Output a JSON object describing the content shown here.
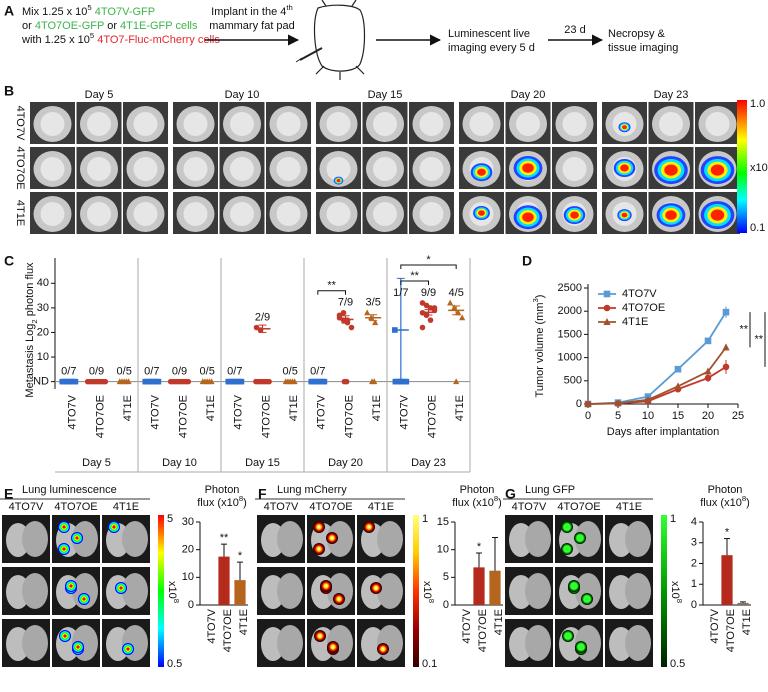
{
  "panel_labels": [
    "A",
    "B",
    "C",
    "D",
    "E",
    "F",
    "G"
  ],
  "workflow": {
    "mix": [
      [
        {
          "text": "Mix 1.25 x 10"
        },
        {
          "text": "5",
          "sup": true
        },
        {
          "text": " 4TO7V-GFP",
          "color": "#3cb44b"
        }
      ],
      [
        {
          "text": "or "
        },
        {
          "text": "4TO7OE-GFP",
          "color": "#3cb44b"
        },
        {
          "text": " or "
        },
        {
          "text": "4T1E-GFP cells",
          "color": "#3cb44b"
        }
      ],
      [
        {
          "text": "with 1.25 x 10"
        },
        {
          "text": "5",
          "sup": true
        },
        {
          "text": " 4TO7-Fluc-mCherry cells",
          "color": "#e6262d"
        }
      ]
    ],
    "implant": [
      [
        {
          "text": "Implant in the 4"
        },
        {
          "text": "th",
          "sup": true
        }
      ],
      [
        {
          "text": "mammary fat pad"
        }
      ]
    ],
    "imaging": [
      [
        {
          "text": "Luminescent live"
        }
      ],
      [
        {
          "text": "imaging every 5 d"
        }
      ]
    ],
    "interval": "23 d",
    "necropsy": [
      [
        {
          "text": "Necropsy &"
        }
      ],
      [
        {
          "text": "tissue imaging"
        }
      ]
    ]
  },
  "live_imaging": {
    "days": [
      "Day 5",
      "Day 10",
      "Day 15",
      "Day 20",
      "Day 23"
    ],
    "rows": [
      "4TO7V",
      "4TO7OE",
      "4T1E"
    ],
    "colorbar": {
      "max": "1.0",
      "min": "0.1",
      "unit": [
        {
          "text": "x10"
        },
        {
          "text": "7",
          "sup": true
        }
      ]
    }
  },
  "chart_data": [
    {
      "type": "dot-scatter",
      "ylabel": [
        {
          "text": "Metastasis Log"
        },
        {
          "text": "2",
          "sub": true
        },
        {
          "text": " photon flux"
        }
      ],
      "ylim": [
        -3,
        45
      ],
      "yticks": [
        {
          "value": 0,
          "label": "ND"
        },
        10,
        20,
        30,
        40
      ],
      "groups": [
        {
          "label": "Day 5",
          "series": [
            {
              "name": "4TO7V",
              "color": "#2e6fd0",
              "marker": "square",
              "fraction": "0/7",
              "values": [
                0,
                0,
                0,
                0,
                0,
                0,
                0
              ]
            },
            {
              "name": "4TO7OE",
              "color": "#c0392b",
              "marker": "circle",
              "fraction": "0/9",
              "values": [
                0,
                0,
                0,
                0,
                0,
                0,
                0,
                0,
                0
              ]
            },
            {
              "name": "4T1E",
              "color": "#b5651d",
              "marker": "triangle",
              "fraction": "0/5",
              "values": [
                0,
                0,
                0,
                0,
                0
              ]
            }
          ]
        },
        {
          "label": "Day 10",
          "series": [
            {
              "name": "4TO7V",
              "color": "#2e6fd0",
              "marker": "square",
              "fraction": "0/7",
              "values": [
                0,
                0,
                0,
                0,
                0,
                0,
                0
              ]
            },
            {
              "name": "4TO7OE",
              "color": "#c0392b",
              "marker": "circle",
              "fraction": "0/9",
              "values": [
                0,
                0,
                0,
                0,
                0,
                0,
                0,
                0,
                0
              ]
            },
            {
              "name": "4T1E",
              "color": "#b5651d",
              "marker": "triangle",
              "fraction": "0/5",
              "values": [
                0,
                0,
                0,
                0,
                0
              ]
            }
          ]
        },
        {
          "label": "Day 15",
          "series": [
            {
              "name": "4TO7V",
              "color": "#2e6fd0",
              "marker": "square",
              "fraction": "0/7",
              "values": [
                0,
                0,
                0,
                0,
                0,
                0,
                0
              ]
            },
            {
              "name": "4TO7OE",
              "color": "#c0392b",
              "marker": "circle",
              "fraction": "2/9",
              "values": [
                22,
                21,
                0,
                0,
                0,
                0,
                0,
                0,
                0
              ],
              "mean": 21.5,
              "error": 1.5
            },
            {
              "name": "4T1E",
              "color": "#b5651d",
              "marker": "triangle",
              "fraction": "0/5",
              "values": [
                0,
                0,
                0,
                0,
                0
              ]
            }
          ]
        },
        {
          "label": "Day 20",
          "significance": [
            null,
            "**",
            null
          ],
          "series": [
            {
              "name": "4TO7V",
              "color": "#2e6fd0",
              "marker": "square",
              "fraction": "0/7",
              "values": [
                0,
                0,
                0,
                0,
                0,
                0,
                0
              ]
            },
            {
              "name": "4TO7OE",
              "color": "#c0392b",
              "marker": "circle",
              "fraction": "7/9",
              "values": [
                27,
                25,
                24,
                22,
                26,
                28,
                25,
                0,
                0
              ],
              "mean": 25.3,
              "error": 1.5
            },
            {
              "name": "4T1E",
              "color": "#b5651d",
              "marker": "triangle",
              "fraction": "3/5",
              "values": [
                28,
                26,
                24,
                0,
                0
              ],
              "mean": 26,
              "error": 1.2
            }
          ]
        },
        {
          "label": "Day 23",
          "significance": [
            null,
            "**",
            "*"
          ],
          "series": [
            {
              "name": "4TO7V",
              "color": "#2e6fd0",
              "marker": "square",
              "fraction": "1/7",
              "values": [
                21,
                0,
                0,
                0,
                0,
                0,
                0
              ],
              "mean": 21,
              "error": 21
            },
            {
              "name": "4TO7OE",
              "color": "#c0392b",
              "marker": "circle",
              "fraction": "9/9",
              "values": [
                32,
                31,
                30,
                29,
                28,
                27,
                25,
                30,
                22
              ],
              "mean": 28.2,
              "error": 1.1
            },
            {
              "name": "4T1E",
              "color": "#b5651d",
              "marker": "triangle",
              "fraction": "4/5",
              "values": [
                32,
                30,
                28,
                26,
                0
              ],
              "mean": 29,
              "error": 1.8
            }
          ]
        }
      ]
    },
    {
      "type": "line",
      "xlabel": "Days after implantation",
      "ylabel": [
        {
          "text": "Tumor volume (mm"
        },
        {
          "text": "3",
          "sup": true
        },
        {
          "text": ")"
        }
      ],
      "x": [
        0,
        5,
        10,
        15,
        20,
        23
      ],
      "xlim": [
        0,
        25
      ],
      "xticks": [
        0,
        5,
        10,
        15,
        20,
        25
      ],
      "ylim": [
        0,
        2500
      ],
      "yticks": [
        0,
        500,
        1000,
        1500,
        2000,
        2500
      ],
      "legend": "upper-left",
      "series": [
        {
          "name": "4TO7V",
          "color": "#5b9bd5",
          "marker": "square",
          "values": [
            0,
            30,
            160,
            750,
            1360,
            1980
          ],
          "errors": [
            0,
            10,
            30,
            50,
            60,
            120
          ]
        },
        {
          "name": "4TO7OE",
          "color": "#c0392b",
          "marker": "circle",
          "values": [
            0,
            10,
            60,
            320,
            560,
            800
          ],
          "errors": [
            0,
            5,
            15,
            60,
            80,
            150
          ]
        },
        {
          "name": "4T1E",
          "color": "#a0522d",
          "marker": "triangle",
          "values": [
            0,
            15,
            90,
            380,
            700,
            1220
          ],
          "errors": [
            0,
            5,
            20,
            40,
            60,
            70
          ]
        }
      ],
      "significance": [
        null,
        "**",
        "**"
      ]
    },
    {
      "type": "bar",
      "image_title": "Lung luminescence",
      "image_title_color": "#1f3a93",
      "colorbar": {
        "max": "5",
        "min": "0.5",
        "unit": [
          {
            "text": "x10"
          },
          {
            "text": "8",
            "sup": true
          }
        ],
        "colors": [
          "#ff0000",
          "#ffff00",
          "#00ff00",
          "#00ffff",
          "#0000ff"
        ]
      },
      "ylabel": [
        [
          {
            "text": "Photon"
          }
        ],
        [
          {
            "text": "flux (x10"
          },
          {
            "text": "8",
            "sup": true
          },
          {
            "text": ")"
          }
        ]
      ],
      "categories": [
        "4TO7V",
        "4TO7OE",
        "4T1E"
      ],
      "values": [
        0,
        17.5,
        9
      ],
      "errors": [
        0,
        4.5,
        6.5
      ],
      "colors": [
        "#2e6fd0",
        "#b52a1c",
        "#b5651d"
      ],
      "significance": [
        null,
        "**",
        "*"
      ],
      "ylim": [
        0,
        30
      ],
      "yticks": [
        0,
        10,
        20,
        30
      ]
    },
    {
      "type": "bar",
      "image_title": "Lung mCherry",
      "image_title_color": "#e6262d",
      "colorbar": {
        "max": "1",
        "min": "0.1",
        "unit": [
          {
            "text": "x10"
          },
          {
            "text": "8",
            "sup": true
          }
        ],
        "colors": [
          "#ffff80",
          "#ffcc00",
          "#ff3300",
          "#990000",
          "#330000"
        ]
      },
      "ylabel": [
        [
          {
            "text": "Photon"
          }
        ],
        [
          {
            "text": "flux (x10"
          },
          {
            "text": "8",
            "sup": true
          },
          {
            "text": ")"
          }
        ]
      ],
      "categories": [
        "4TO7V",
        "4TO7OE",
        "4T1E"
      ],
      "values": [
        0,
        6.8,
        6.2
      ],
      "errors": [
        0,
        2.6,
        6.0
      ],
      "colors": [
        "#2e6fd0",
        "#b52a1c",
        "#b5651d"
      ],
      "significance": [
        null,
        "*",
        null
      ],
      "ylim": [
        0,
        15
      ],
      "yticks": [
        0,
        5,
        10,
        15
      ]
    },
    {
      "type": "bar",
      "image_title": "Lung GFP",
      "image_title_color": "#3cb44b",
      "colorbar": {
        "max": "1",
        "min": "0.5",
        "unit": [
          {
            "text": "x10"
          },
          {
            "text": "8",
            "sup": true
          }
        ],
        "colors": [
          "#33ff33",
          "#009900",
          "#002200"
        ]
      },
      "ylabel": [
        [
          {
            "text": "Photon"
          }
        ],
        [
          {
            "text": "flux (x10"
          },
          {
            "text": "8",
            "sup": true
          },
          {
            "text": ")"
          }
        ]
      ],
      "categories": [
        "4TO7V",
        "4TO7OE",
        "4T1E"
      ],
      "values": [
        0,
        2.4,
        0.1
      ],
      "errors": [
        0,
        0.8,
        0.05
      ],
      "colors": [
        "#2e6fd0",
        "#b52a1c",
        "#8a7060"
      ],
      "significance": [
        null,
        "*",
        null
      ],
      "ylim": [
        0,
        4
      ],
      "yticks": [
        0,
        1,
        2,
        3,
        4
      ]
    }
  ]
}
